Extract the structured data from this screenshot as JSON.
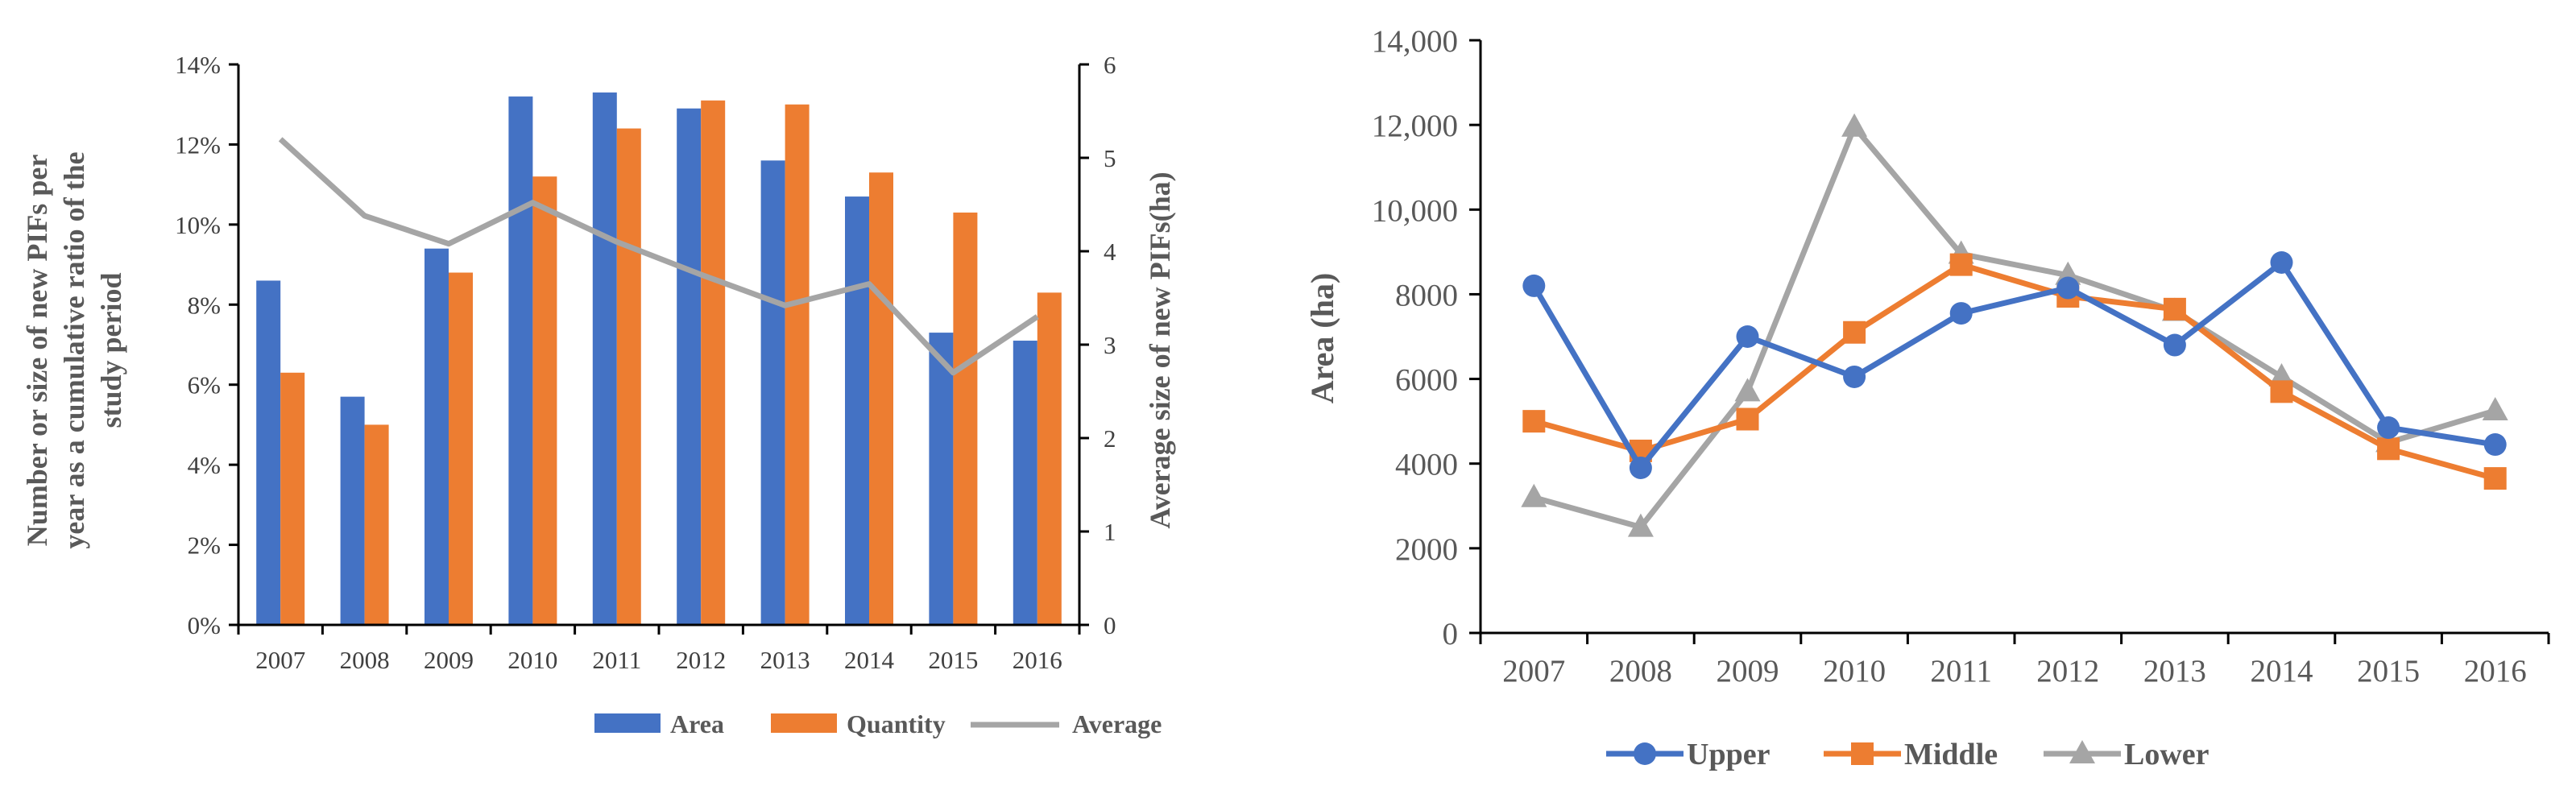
{
  "chart_data": [
    {
      "type": "bar+line",
      "categories": [
        "2007",
        "2008",
        "2009",
        "2010",
        "2011",
        "2012",
        "2013",
        "2014",
        "2015",
        "2016"
      ],
      "series": [
        {
          "name": "Area",
          "kind": "bar",
          "axis": "left",
          "color": "#4472C4",
          "values": [
            8.6,
            5.7,
            9.4,
            13.2,
            13.3,
            12.9,
            11.6,
            10.7,
            7.3,
            7.1
          ]
        },
        {
          "name": "Quantity",
          "kind": "bar",
          "axis": "left",
          "color": "#ED7D31",
          "values": [
            6.3,
            5.0,
            8.8,
            11.2,
            12.4,
            13.1,
            13.0,
            11.3,
            10.3,
            8.3
          ]
        },
        {
          "name": "Average",
          "kind": "line",
          "axis": "right",
          "color": "#A5A5A5",
          "values": [
            5.2,
            4.38,
            4.08,
            4.52,
            4.1,
            3.75,
            3.42,
            3.65,
            2.7,
            3.3
          ]
        }
      ],
      "ylabel": "Number or size of new PIFs per year as a cumulative ratio of the study period",
      "ylabel_lines": [
        "Number or size of new PIFs per",
        "year as a cumulative ratio of the",
        "study period"
      ],
      "y2label": "Average size of new PIFs(ha)",
      "ylim": [
        0,
        14
      ],
      "y2lim": [
        0,
        6
      ],
      "yticks": [
        "0%",
        "2%",
        "4%",
        "6%",
        "8%",
        "10%",
        "12%",
        "14%"
      ],
      "y2ticks": [
        "0",
        "1",
        "2",
        "3",
        "4",
        "5",
        "6"
      ],
      "legend": [
        "Area",
        "Quantity",
        "Average"
      ],
      "legend_position": "bottom"
    },
    {
      "type": "line",
      "categories": [
        "2007",
        "2008",
        "2009",
        "2010",
        "2011",
        "2012",
        "2013",
        "2014",
        "2015",
        "2016"
      ],
      "series": [
        {
          "name": "Upper",
          "color": "#4472C4",
          "marker": "circle",
          "values": [
            8200,
            3900,
            7000,
            6050,
            7550,
            8150,
            6800,
            8750,
            4850,
            4450
          ]
        },
        {
          "name": "Middle",
          "color": "#ED7D31",
          "marker": "square",
          "values": [
            5000,
            4300,
            5050,
            7100,
            8700,
            7950,
            7650,
            5700,
            4350,
            3650
          ]
        },
        {
          "name": "Lower",
          "color": "#A5A5A5",
          "marker": "triangle",
          "values": [
            3200,
            2500,
            5700,
            11950,
            8950,
            8450,
            7600,
            6050,
            4500,
            5250
          ]
        }
      ],
      "ylabel": "Area (ha)",
      "ylim": [
        0,
        14000
      ],
      "yticks": [
        "0",
        "2000",
        "4000",
        "6000",
        "8000",
        "10,000",
        "12,000",
        "14,000"
      ],
      "legend": [
        "Upper",
        "Middle",
        "Lower"
      ],
      "legend_position": "bottom"
    }
  ]
}
